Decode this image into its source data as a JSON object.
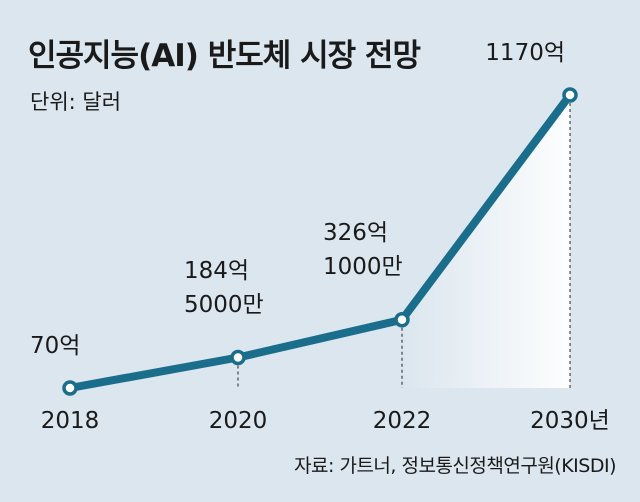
{
  "chart_data": {
    "type": "line",
    "title": "인공지능(AI) 반도체 시장 전망",
    "unit": "단위: 달러",
    "source": "자료: 가트너, 정보통신정책연구원(KISDI)",
    "categories": [
      "2018",
      "2020",
      "2022",
      "2030년"
    ],
    "series": [
      {
        "values": [
          7000000000,
          18450000000,
          32610000000,
          117000000000
        ],
        "labels": [
          [
            "70억"
          ],
          [
            "184억",
            "5000만"
          ],
          [
            "326억",
            "1000만"
          ],
          [
            "1170억"
          ]
        ]
      }
    ],
    "colors": {
      "line": "#1a6e8c",
      "background": "#dbe6ee",
      "marker_fill": "#ffffff"
    }
  }
}
